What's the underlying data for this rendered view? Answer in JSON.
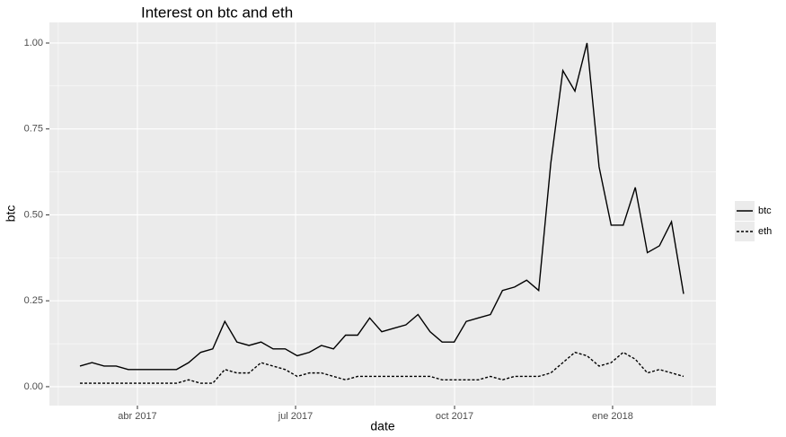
{
  "chart_data": {
    "type": "line",
    "title": "Interest on btc and eth",
    "x_label": "date",
    "y_label": "btc",
    "categories": [
      null,
      null,
      null,
      null,
      null,
      null,
      null,
      null,
      null,
      null,
      null,
      null,
      null,
      null,
      null,
      null,
      null,
      null,
      null,
      null,
      null,
      null,
      null,
      null,
      null,
      null,
      null,
      null,
      null,
      null,
      null,
      null,
      null,
      null,
      null,
      null,
      null,
      null,
      null,
      null,
      null,
      null,
      null,
      null,
      null,
      null,
      null,
      null,
      null,
      null,
      null
    ],
    "series": [
      {
        "name": "btc",
        "color": "#000000",
        "dash": "solid",
        "values": [
          0.06,
          0.07,
          0.06,
          0.06,
          0.05,
          0.05,
          0.05,
          0.05,
          0.05,
          0.07,
          0.1,
          0.11,
          0.19,
          0.13,
          0.12,
          0.13,
          0.11,
          0.11,
          0.09,
          0.1,
          0.12,
          0.11,
          0.15,
          0.15,
          0.2,
          0.16,
          0.17,
          0.18,
          0.21,
          0.16,
          0.13,
          0.13,
          0.19,
          0.2,
          0.21,
          0.28,
          0.29,
          0.31,
          0.28,
          0.65,
          0.92,
          0.86,
          1.0,
          0.64,
          0.47,
          0.47,
          0.58,
          0.39,
          0.41,
          0.48,
          0.27
        ]
      },
      {
        "name": "eth",
        "color": "#000000",
        "dash": "dotted",
        "values": [
          0.01,
          0.01,
          0.01,
          0.01,
          0.01,
          0.01,
          0.01,
          0.01,
          0.01,
          0.02,
          0.01,
          0.01,
          0.05,
          0.04,
          0.04,
          0.07,
          0.06,
          0.05,
          0.03,
          0.04,
          0.04,
          0.03,
          0.02,
          0.03,
          0.03,
          0.03,
          0.03,
          0.03,
          0.03,
          0.03,
          0.02,
          0.02,
          0.02,
          0.02,
          0.03,
          0.02,
          0.03,
          0.03,
          0.03,
          0.04,
          0.07,
          0.1,
          0.09,
          0.06,
          0.07,
          0.1,
          0.08,
          0.04,
          0.05,
          0.04,
          0.03
        ]
      }
    ],
    "xlim": [
      -2.53,
      52.68
    ],
    "xticks": [
      {
        "value": 4.76,
        "label": "abr 2017"
      },
      {
        "value": 17.86,
        "label": "jul 2017"
      },
      {
        "value": 31.03,
        "label": "oct 2017"
      },
      {
        "value": 44.12,
        "label": "ene 2018"
      }
    ],
    "ylim": [
      -0.055,
      1.06
    ],
    "yticks": [
      {
        "value": 0,
        "label": "0.00"
      },
      {
        "value": 0.25,
        "label": "0.25"
      },
      {
        "value": 0.5,
        "label": "0.50"
      },
      {
        "value": 0.75,
        "label": "0.75"
      },
      {
        "value": 1,
        "label": "1.00"
      }
    ],
    "grid": true,
    "legend": "right"
  }
}
